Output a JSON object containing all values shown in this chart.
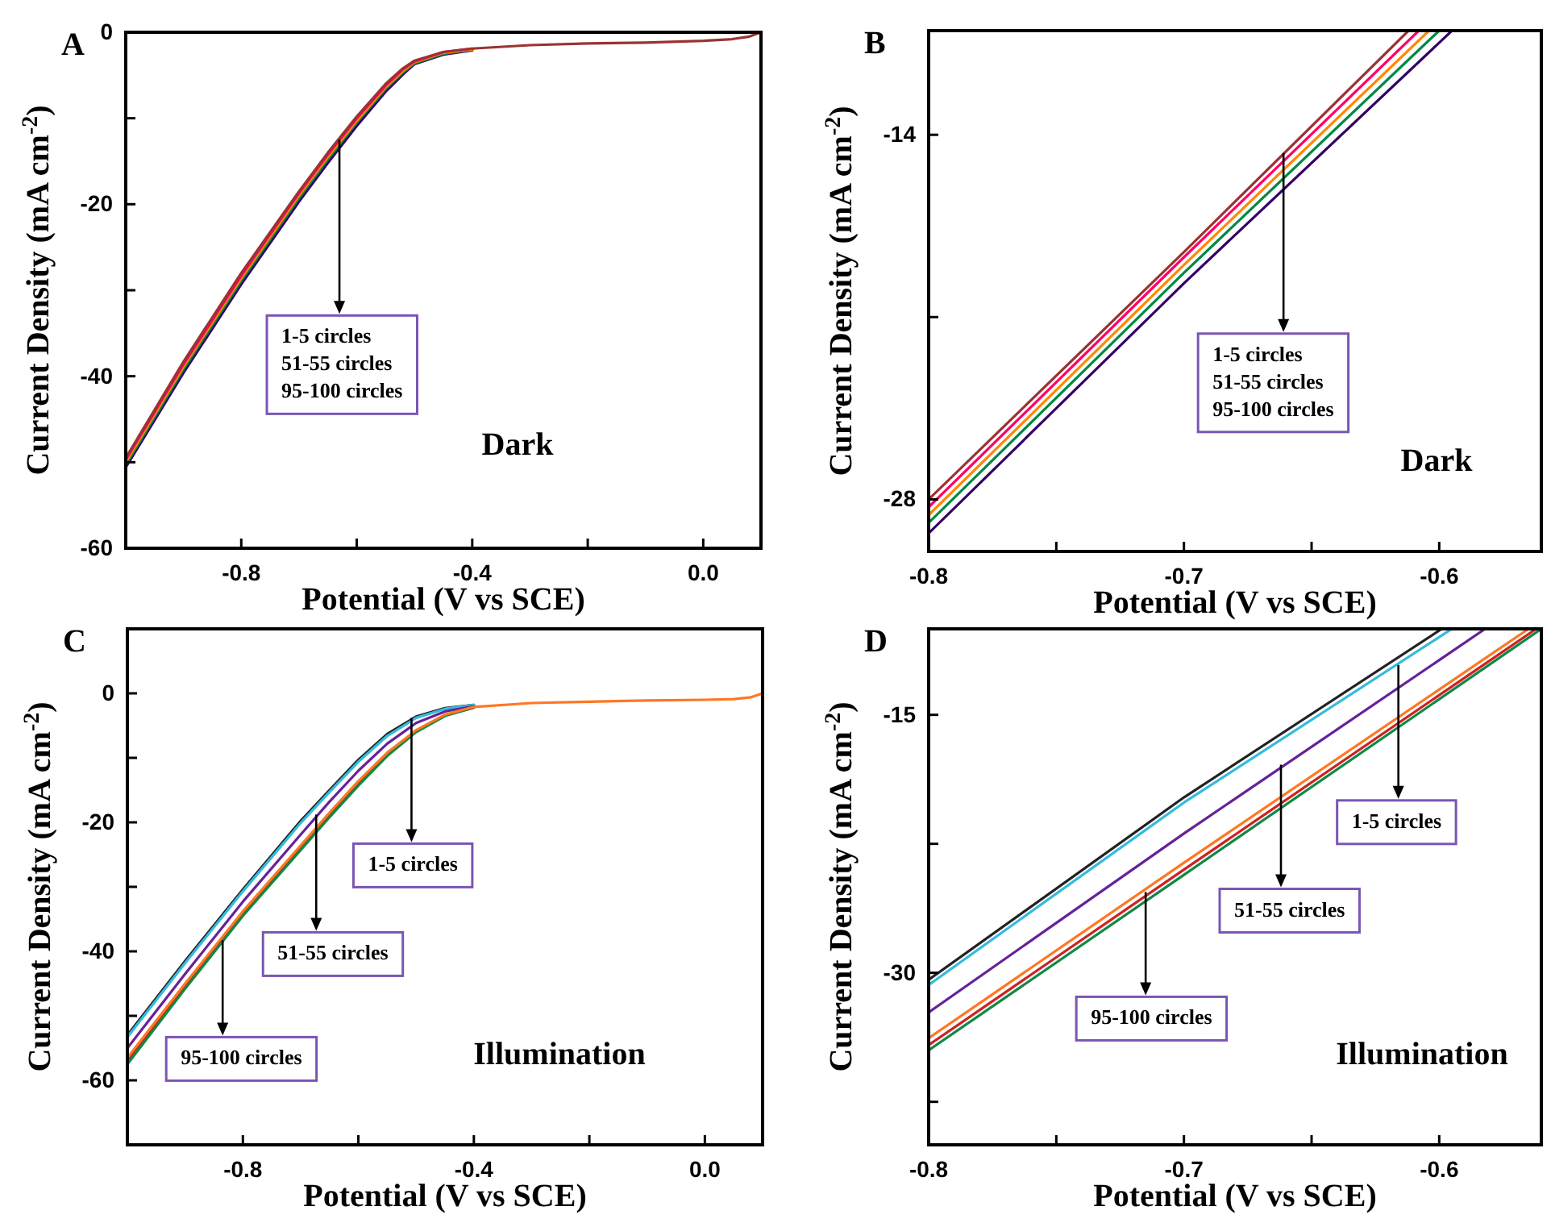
{
  "chart_data": [
    {
      "type": "line",
      "title": "A",
      "xlabel": "Potential (V vs SCE)",
      "ylabel": "Current Density (mA cm$^{-2}$)",
      "xlim": [
        -1.0,
        0.1
      ],
      "ylim": [
        -60,
        0
      ],
      "xticks": [
        -0.8,
        {
          "value": -0.6,
          "label": null
        },
        -0.4,
        {
          "value": -0.2,
          "label": null
        },
        {
          "value": 0,
          "label": "0.0"
        }
      ],
      "yticks": [
        -60,
        {
          "value": -50,
          "label": null
        },
        -40,
        {
          "value": -30,
          "label": null
        },
        -20,
        {
          "value": -10,
          "label": null
        },
        0
      ],
      "x": [
        -1.0,
        -0.9,
        -0.8,
        -0.7,
        -0.65,
        -0.6,
        -0.55,
        -0.52,
        -0.5,
        -0.45,
        -0.4,
        -0.3,
        -0.2,
        -0.1,
        0.0,
        0.05,
        0.08,
        0.1
      ],
      "series": [
        {
          "color": "#330066",
          "values": [
            -50.6,
            -39.6,
            -29.3,
            -19.7,
            -15.2,
            -10.9,
            -6.9,
            -4.9,
            -3.7,
            -2.6,
            -2.1,
            null,
            null,
            null,
            null,
            null,
            null,
            null
          ]
        },
        {
          "color": "#008844",
          "values": [
            -50.3,
            -39.2,
            -28.9,
            -19.3,
            -14.8,
            -10.5,
            -6.6,
            -4.7,
            -3.6,
            -2.5,
            -2.0,
            null,
            null,
            null,
            null,
            null,
            null,
            null
          ]
        },
        {
          "color": "#ff8800",
          "values": [
            -50.0,
            -38.9,
            -28.6,
            -19.0,
            -14.5,
            -10.3,
            -6.4,
            -4.5,
            -3.5,
            -2.4,
            -2.0,
            null,
            null,
            null,
            null,
            null,
            null,
            null
          ]
        },
        {
          "color": "#ff0066",
          "values": [
            -49.7,
            -38.6,
            -28.3,
            -18.7,
            -14.2,
            -10.0,
            -6.2,
            -4.3,
            -3.4,
            -2.3,
            -1.9,
            null,
            null,
            null,
            null,
            null,
            null,
            null
          ]
        },
        {
          "color": "#993333",
          "values": [
            -49.5,
            -38.3,
            -28.0,
            -18.5,
            -14.0,
            -9.8,
            -6.0,
            -4.2,
            -3.3,
            -2.3,
            -1.9,
            -1.5,
            -1.3,
            -1.2,
            -1.0,
            -0.8,
            -0.5,
            0
          ]
        }
      ],
      "annotations": [
        {
          "text": "1-5 circles",
          "x": -0.63,
          "y": -12.5
        },
        "51-55 circles",
        "95-100 circles",
        "Dark"
      ]
    },
    {
      "type": "line",
      "title": "B",
      "xlabel": "Potential (V vs SCE)",
      "ylabel": "Current Density (mA cm$^{-2}$)",
      "xlim": [
        -0.8,
        -0.56
      ],
      "ylim": [
        -30,
        -10
      ],
      "xticks": [
        -0.8,
        {
          "value": -0.75,
          "label": null
        },
        -0.7,
        {
          "value": -0.65,
          "label": null
        },
        -0.6
      ],
      "yticks": [
        -28,
        {
          "value": -21,
          "label": null
        },
        -14
      ],
      "series": [
        {
          "color": "#993333",
          "x": [
            -0.8,
            -0.7,
            -0.612
          ],
          "values": [
            -28.0,
            -18.5,
            -10
          ]
        },
        {
          "color": "#ff0066",
          "x": [
            -0.8,
            -0.7,
            -0.608
          ],
          "values": [
            -28.3,
            -18.7,
            -10
          ]
        },
        {
          "color": "#ff8800",
          "x": [
            -0.8,
            -0.7,
            -0.604
          ],
          "values": [
            -28.6,
            -19.0,
            -10
          ]
        },
        {
          "color": "#008844",
          "x": [
            -0.8,
            -0.7,
            -0.6
          ],
          "values": [
            -28.9,
            -19.3,
            -10
          ]
        },
        {
          "color": "#330066",
          "x": [
            -0.8,
            -0.7,
            -0.595
          ],
          "values": [
            -29.3,
            -19.7,
            -10
          ]
        }
      ],
      "annotations": [
        {
          "text": "1-5 circles",
          "x": -0.661,
          "y": -14.7
        },
        "51-55 circles",
        "95-100 circles",
        "Dark"
      ]
    },
    {
      "type": "line",
      "title": "C",
      "xlabel": "Potential (V vs SCE)",
      "ylabel": "Current Density (mA cm$^{-2}$)",
      "xlim": [
        -1.0,
        0.1
      ],
      "ylim": [
        -70,
        10
      ],
      "xticks": [
        -0.8,
        {
          "value": -0.6,
          "label": null
        },
        -0.4,
        {
          "value": -0.2,
          "label": null
        },
        {
          "value": 0,
          "label": "0.0"
        }
      ],
      "yticks": [
        -60,
        {
          "value": -50,
          "label": null
        },
        -40,
        {
          "value": -30,
          "label": null
        },
        -20,
        {
          "value": -10,
          "label": null
        },
        0
      ],
      "x": [
        -1.0,
        -0.9,
        -0.8,
        -0.7,
        -0.65,
        -0.6,
        -0.55,
        -0.5,
        -0.45,
        -0.4,
        -0.3,
        -0.2,
        -0.1,
        0.0,
        0.05,
        0.08,
        0.1
      ],
      "series": [
        {
          "color": "#222222",
          "values": [
            -53.0,
            -41.5,
            -30.4,
            -19.8,
            -15.0,
            -10.3,
            -6.3,
            -3.6,
            -2.3,
            -1.8,
            null,
            null,
            null,
            null,
            null,
            null,
            null
          ]
        },
        {
          "color": "#33bbdd",
          "values": [
            -53.3,
            -41.8,
            -30.7,
            -20.1,
            -15.3,
            -10.6,
            -6.6,
            -3.8,
            -2.4,
            -1.8,
            null,
            null,
            null,
            null,
            null,
            null,
            null
          ]
        },
        {
          "color": "#662299",
          "values": [
            -55.0,
            -43.5,
            -32.3,
            -21.9,
            -16.8,
            -12.0,
            -7.8,
            -4.6,
            -2.8,
            -2.0,
            null,
            null,
            null,
            null,
            null,
            null,
            null
          ]
        },
        {
          "color": "#cc2222",
          "values": [
            -57.0,
            -45.4,
            -34.2,
            -24.0,
            -18.9,
            -14.0,
            -9.5,
            -5.9,
            -3.4,
            -2.2,
            null,
            null,
            null,
            null,
            null,
            null,
            null
          ]
        },
        {
          "color": "#118844",
          "values": [
            -57.5,
            -45.8,
            -34.5,
            -24.3,
            -19.2,
            -14.3,
            -9.7,
            -6.0,
            -3.5,
            -2.2,
            null,
            null,
            null,
            null,
            null,
            null,
            null
          ]
        },
        {
          "color": "#ff7722",
          "values": [
            -56.5,
            -45.0,
            -33.8,
            -23.6,
            -18.5,
            -13.6,
            -9.2,
            -5.7,
            -3.3,
            -2.1,
            -1.5,
            -1.3,
            -1.1,
            -1.0,
            -0.9,
            -0.6,
            0
          ]
        }
      ],
      "annotations": [
        {
          "text": "1-5 circles",
          "x": -0.508,
          "y": -3.8
        },
        {
          "text": "51-55 circles",
          "x": -0.673,
          "y": -18.8
        },
        {
          "text": "95-100 circles",
          "x": -0.835,
          "y": -38.3
        },
        "Illumination"
      ]
    },
    {
      "type": "line",
      "title": "D",
      "xlabel": "Potential (V vs SCE)",
      "ylabel": "Current Density (mA cm$^{-2}$)",
      "xlim": [
        -0.8,
        -0.56
      ],
      "ylim": [
        -40,
        -10
      ],
      "xticks": [
        -0.8,
        {
          "value": -0.75,
          "label": null
        },
        -0.7,
        {
          "value": -0.65,
          "label": null
        },
        -0.6
      ],
      "yticks": [
        {
          "value": -37.5,
          "label": null
        },
        -30,
        {
          "value": -22.5,
          "label": null
        },
        -15
      ],
      "series": [
        {
          "color": "#222222",
          "x": [
            -0.8,
            -0.7,
            -0.599
          ],
          "values": [
            -30.4,
            -19.8,
            -10
          ]
        },
        {
          "color": "#33bbdd",
          "x": [
            -0.8,
            -0.7,
            -0.595
          ],
          "values": [
            -30.7,
            -20.1,
            -10
          ]
        },
        {
          "color": "#662299",
          "x": [
            -0.8,
            -0.7,
            -0.582
          ],
          "values": [
            -32.3,
            -21.9,
            -10
          ]
        },
        {
          "color": "#ff7722",
          "x": [
            -0.8,
            -0.7,
            -0.565
          ],
          "values": [
            -33.8,
            -23.6,
            -10
          ]
        },
        {
          "color": "#cc2222",
          "x": [
            -0.8,
            -0.7,
            -0.562
          ],
          "values": [
            -34.2,
            -24.0,
            -10
          ]
        },
        {
          "color": "#118844",
          "x": [
            -0.8,
            -0.7,
            -0.56
          ],
          "values": [
            -34.5,
            -24.3,
            -10
          ]
        }
      ],
      "annotations": [
        {
          "text": "1-5 circles",
          "x": -0.616,
          "y": -12.1
        },
        {
          "text": "51-55 circles",
          "x": -0.662,
          "y": -17.9
        },
        {
          "text": "95-100 circles",
          "x": -0.715,
          "y": -25.3
        },
        "Illumination"
      ]
    }
  ]
}
